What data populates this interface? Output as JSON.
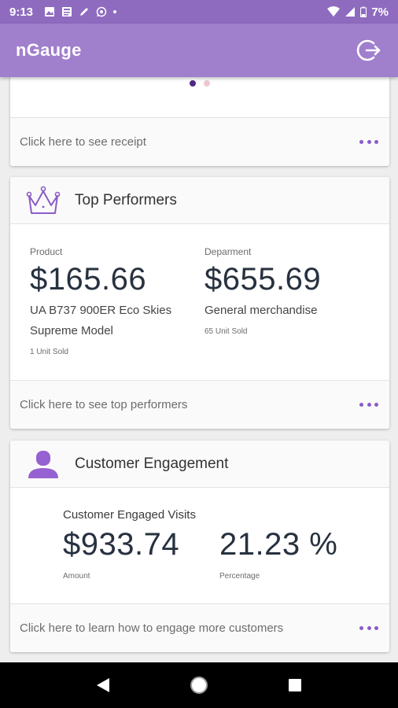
{
  "status_bar": {
    "time": "9:13",
    "battery": "7%"
  },
  "app_bar": {
    "title": "nGauge"
  },
  "receipt_card": {
    "footer_link": "Click here to see receipt"
  },
  "top_performers": {
    "title": "Top Performers",
    "product": {
      "label": "Product",
      "value": "$165.66",
      "name_line1": "UA B737 900ER Eco Skies",
      "name_line2": "Supreme Model",
      "units": "1 Unit Sold"
    },
    "department": {
      "label": "Deparment",
      "value": "$655.69",
      "name": "General merchandise",
      "units": "65 Unit Sold"
    },
    "footer_link": "Click here to see top performers"
  },
  "customer_engagement": {
    "title": "Customer Engagement",
    "subtitle": "Customer Engaged Visits",
    "amount": {
      "value": "$933.74",
      "label": "Amount"
    },
    "percentage": {
      "value": "21.23 %",
      "label": "Percentage"
    },
    "footer_link": "Click here to learn how to engage more customers"
  },
  "colors": {
    "primary": "#a07fcd",
    "status": "#8e6bbf",
    "accent": "#8a5cc7"
  }
}
